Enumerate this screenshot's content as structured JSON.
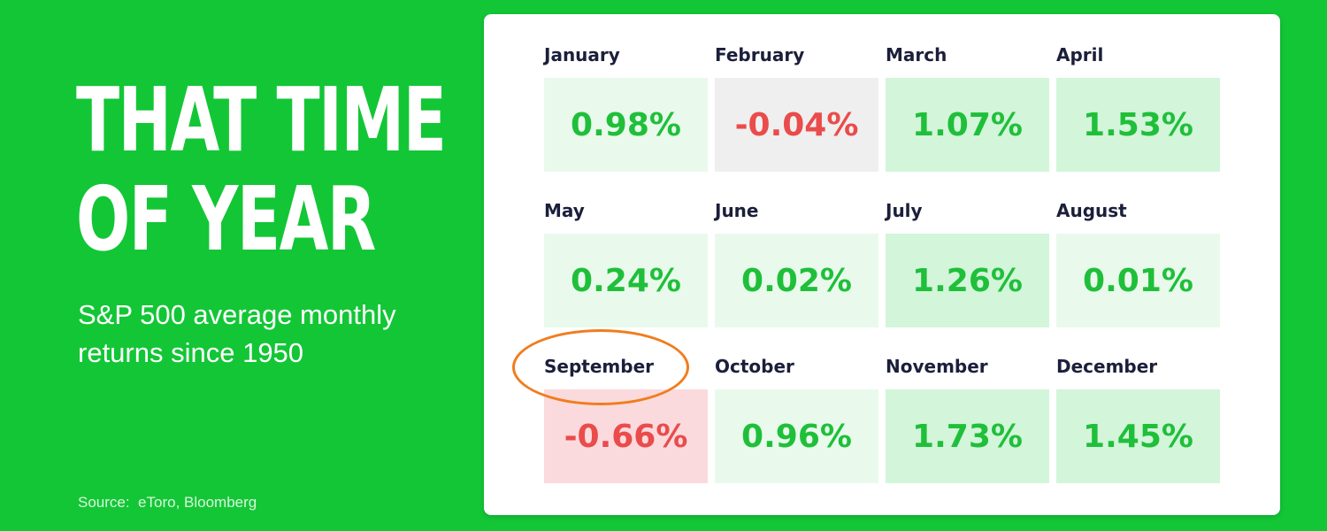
{
  "title_lines": [
    "THAT TIME",
    "OF YEAR"
  ],
  "subtitle_lines": [
    "S&P 500 average monthly",
    "returns since 1950"
  ],
  "source": {
    "label": "Source:",
    "value": "eToro, Bloomberg"
  },
  "colors": {
    "background": "#13c636",
    "positive_text": "#1fbf3a",
    "negative_text": "#ea4b4b",
    "highlight_ring": "#f07d1d"
  },
  "highlighted_month": "September",
  "chart_data": {
    "type": "table",
    "categories": [
      "January",
      "February",
      "March",
      "April",
      "May",
      "June",
      "July",
      "August",
      "September",
      "October",
      "November",
      "December"
    ],
    "values": [
      0.98,
      -0.04,
      1.07,
      1.53,
      0.24,
      0.02,
      1.26,
      0.01,
      -0.66,
      0.96,
      1.73,
      1.45
    ],
    "labels": [
      "0.98%",
      "-0.04%",
      "1.07%",
      "1.53%",
      "0.24%",
      "0.02%",
      "1.26%",
      "0.01%",
      "-0.66%",
      "0.96%",
      "1.73%",
      "1.45%"
    ]
  }
}
